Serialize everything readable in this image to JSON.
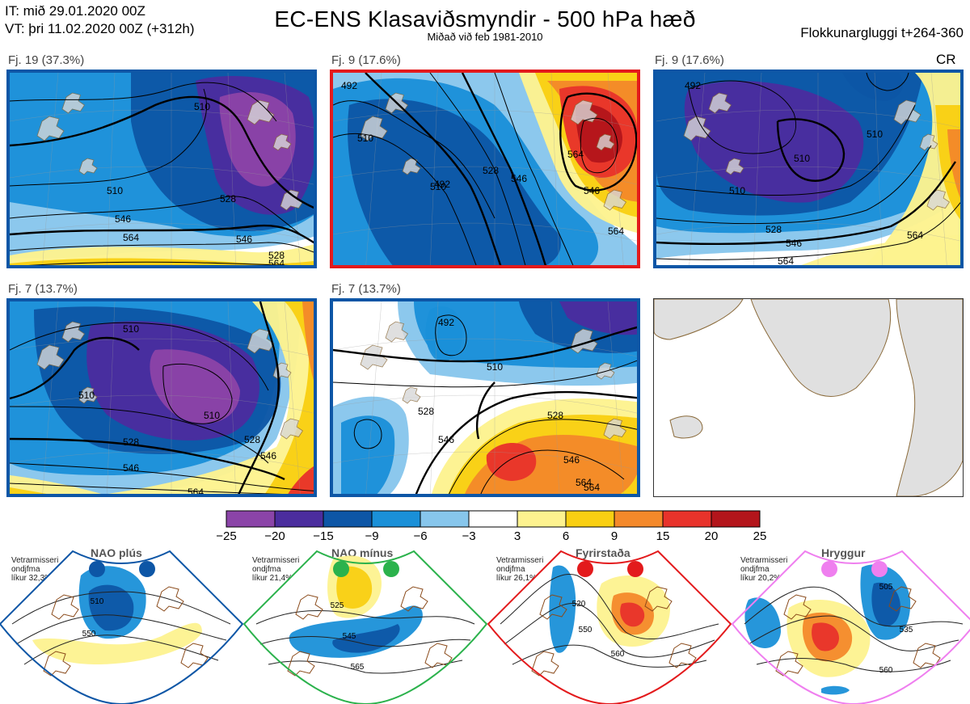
{
  "header": {
    "issue_time": "IT: mið 29.01.2020 00Z",
    "valid_time": "VT: þri 11.02.2020 00Z  (+312h)",
    "title": "EC-ENS Klasaviðsmyndir - 500 hPa hæð",
    "subtitle": "Miðað við feb 1981-2010",
    "window": "Flokkunargluggi t+264-360",
    "cr_label": "CR"
  },
  "colors": {
    "nao_plus": "#0d56a6",
    "nao_minus": "#2bb24c",
    "blocking": "#e31a1c",
    "ridge": "#ef7fef"
  },
  "panels": [
    {
      "label": "Fj. 19 (37.3%)",
      "regime": "nao_plus",
      "border": "#0d56a6",
      "contour_labels": [
        "510",
        "510",
        "528",
        "546",
        "564",
        "546",
        "528",
        "564"
      ]
    },
    {
      "label": "Fj. 9 (17.6%)",
      "regime": "blocking",
      "border": "#e31a1c",
      "contour_labels": [
        "492",
        "510",
        "510",
        "492",
        "528",
        "546",
        "564",
        "546",
        "564"
      ]
    },
    {
      "label": "Fj. 9 (17.6%)",
      "regime": "nao_plus",
      "border": "#0d56a6",
      "contour_labels": [
        "492",
        "510",
        "510",
        "528",
        "546",
        "564",
        "564",
        "510"
      ]
    },
    {
      "label": "Fj. 7 (13.7%)",
      "regime": "nao_plus",
      "border": "#0d56a6",
      "contour_labels": [
        "510",
        "510",
        "510",
        "528",
        "546",
        "528",
        "546",
        "564"
      ]
    },
    {
      "label": "Fj. 7 (13.7%)",
      "regime": "nao_plus",
      "border": "#0d56a6",
      "contour_labels": [
        "492",
        "510",
        "528",
        "546",
        "564",
        "546",
        "564",
        "528"
      ]
    }
  ],
  "colorbar": {
    "ticks": [
      "−25",
      "−20",
      "−15",
      "−9",
      "−6",
      "−3",
      "3",
      "6",
      "9",
      "15",
      "20",
      "25"
    ],
    "colors": [
      "#8b44a8",
      "#4b2d9e",
      "#0d56a6",
      "#1a90d8",
      "#87c6ec",
      "#ffffff",
      "#fdf28f",
      "#f9cf12",
      "#f4892a",
      "#e8332b",
      "#b3151b"
    ]
  },
  "regimes": [
    {
      "key": "nao_plus",
      "title": "NAO plús",
      "info": [
        "Vetrarmisseri",
        "ondjfma",
        "líkur 32,3%"
      ],
      "contour_labels": [
        "510",
        "550"
      ]
    },
    {
      "key": "nao_minus",
      "title": "NAO mínus",
      "info": [
        "Vetrarmisseri",
        "ondjfma",
        "líkur 21,4%"
      ],
      "contour_labels": [
        "525",
        "545",
        "565"
      ]
    },
    {
      "key": "blocking",
      "title": "Fyrirstaða",
      "info": [
        "Vetrarmisseri",
        "ondjfma",
        "líkur 26,1%"
      ],
      "contour_labels": [
        "520",
        "550",
        "560"
      ]
    },
    {
      "key": "ridge",
      "title": "Hryggur",
      "info": [
        "Vetrarmisseri",
        "ondjfma",
        "líkur 20,2%"
      ],
      "contour_labels": [
        "505",
        "535",
        "560"
      ]
    }
  ]
}
